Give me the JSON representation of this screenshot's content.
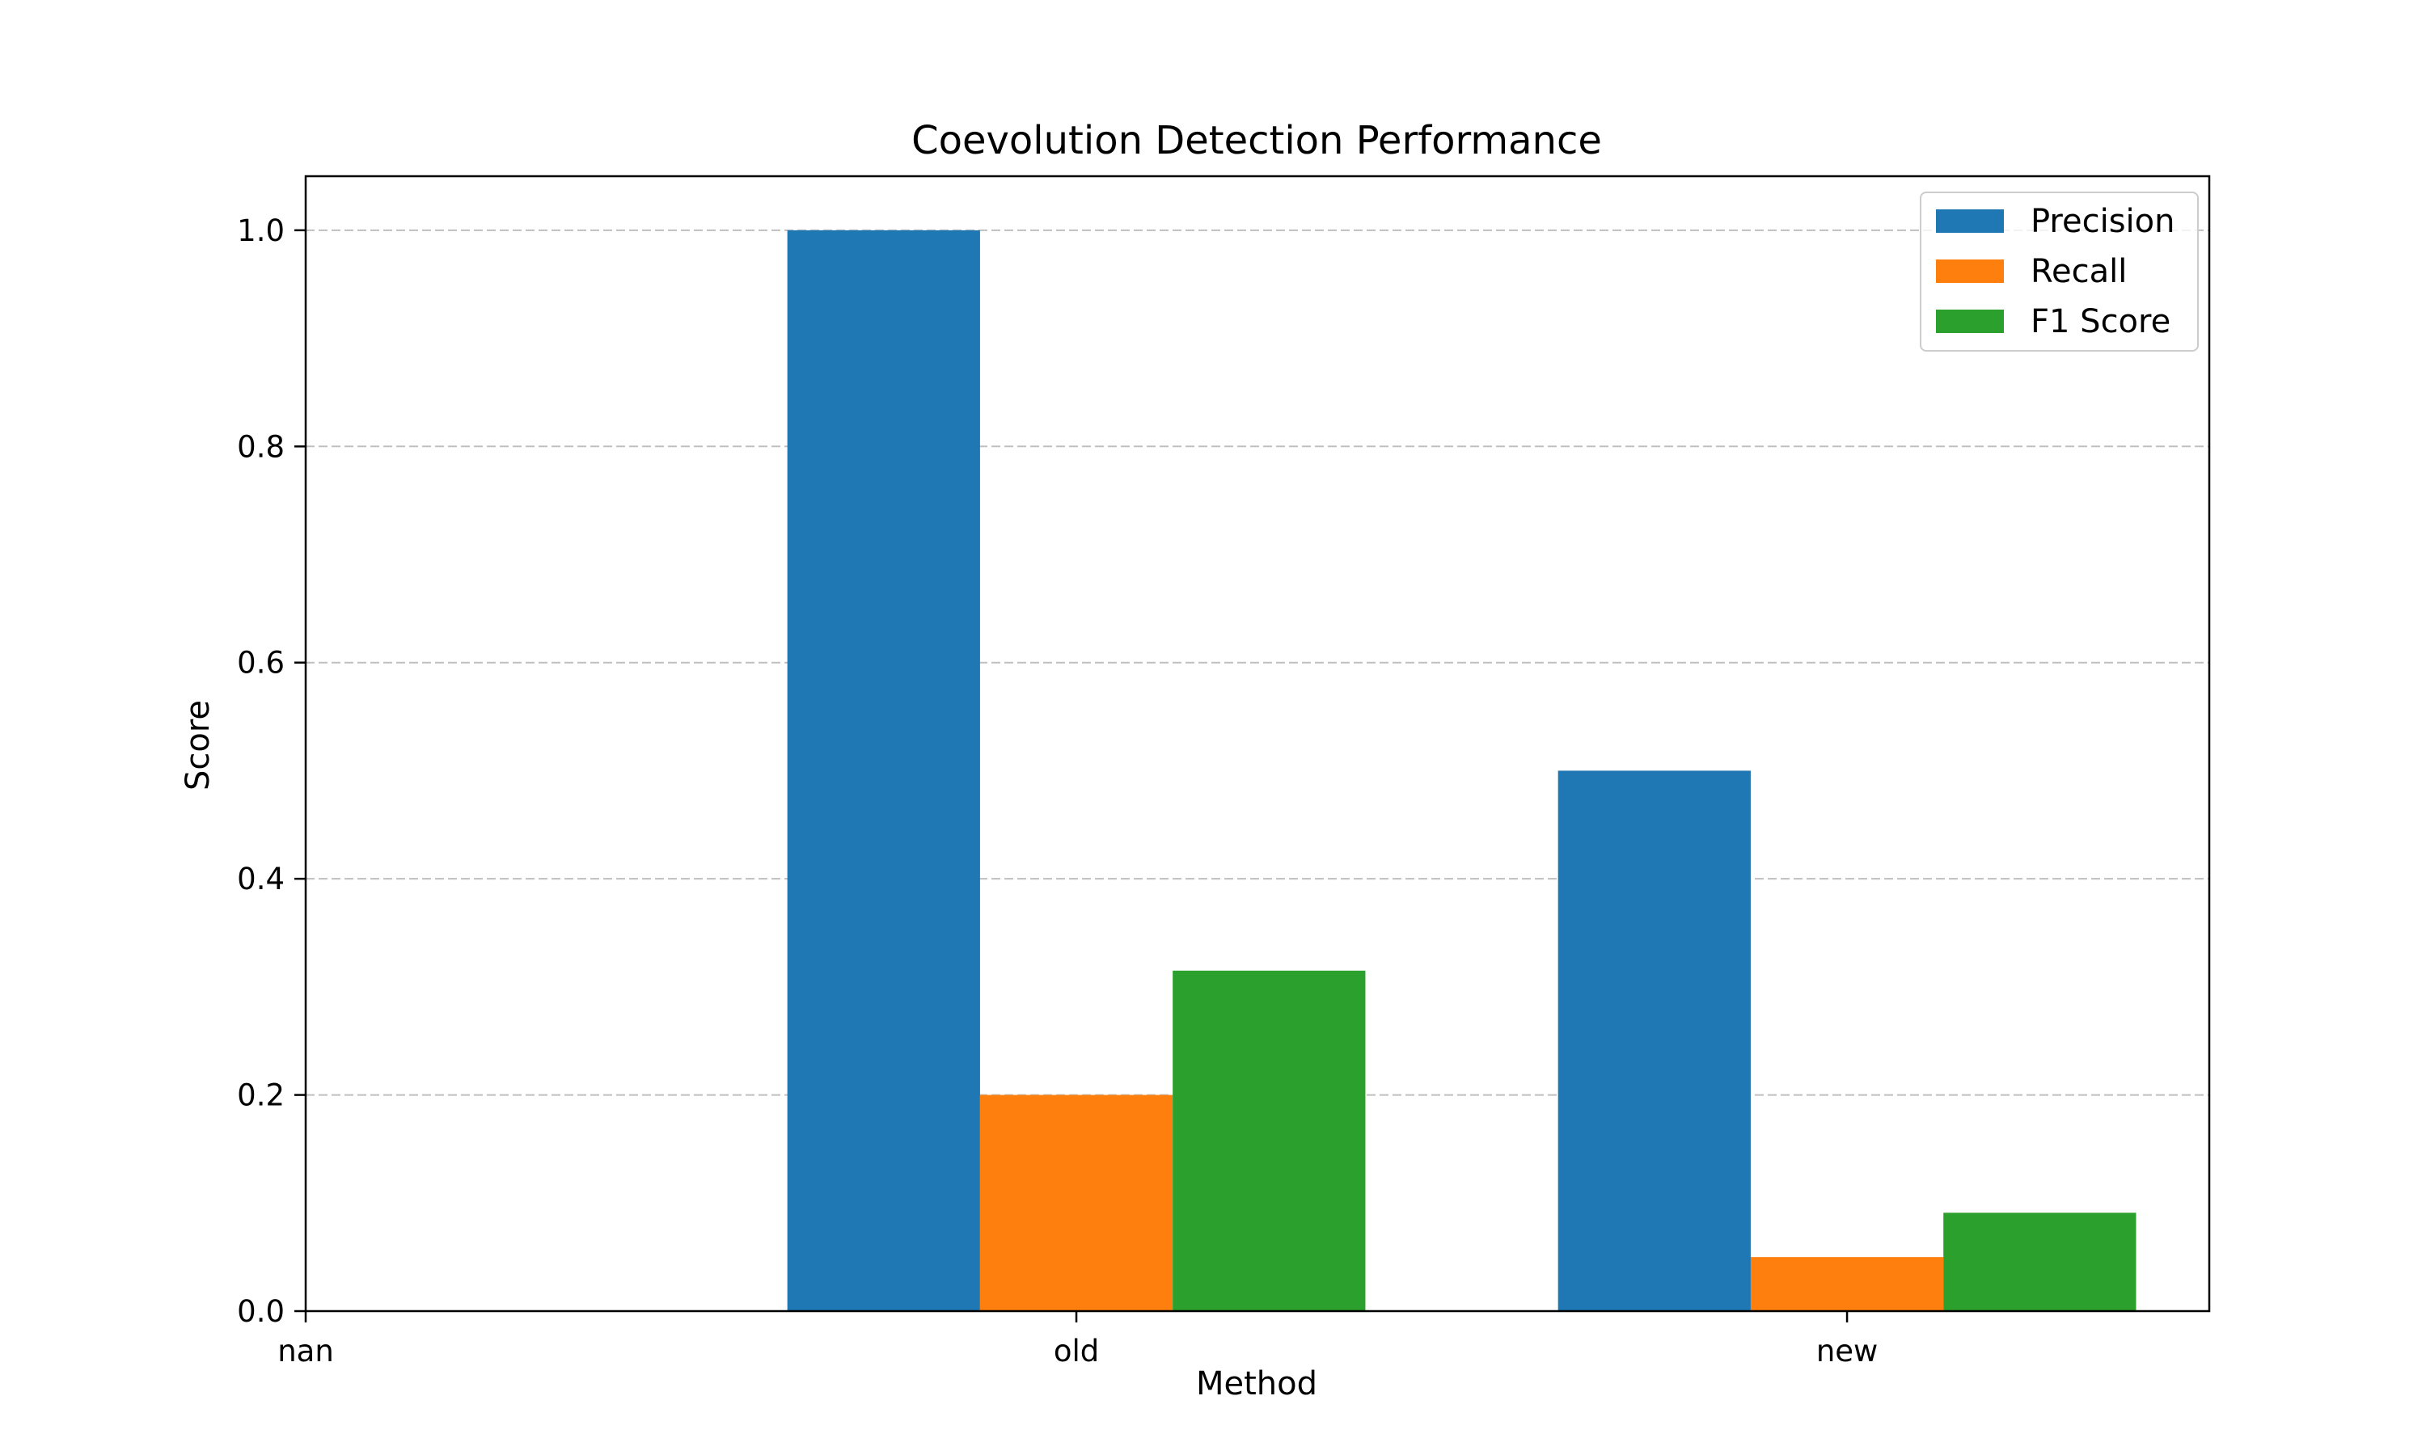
{
  "chart_data": {
    "type": "bar",
    "title": "Coevolution Detection Performance",
    "xlabel": "Method",
    "ylabel": "Score",
    "x_tick_labels": [
      "nan",
      "old",
      "new"
    ],
    "y_ticks": [
      0.0,
      0.2,
      0.4,
      0.6,
      0.8,
      1.0
    ],
    "y_tick_labels": [
      "0.0",
      "0.2",
      "0.4",
      "0.6",
      "0.8",
      "1.0"
    ],
    "ylim": [
      0,
      1.05
    ],
    "xlim": [
      0,
      2.47
    ],
    "grid": "y-dashed",
    "legend_position": "top-right",
    "groups": [
      {
        "label": "old",
        "center": 1.0
      },
      {
        "label": "new",
        "center": 2.0
      }
    ],
    "series": [
      {
        "name": "Precision",
        "color": "#1f77b4",
        "offset": -0.25,
        "values": [
          1.0,
          0.5
        ]
      },
      {
        "name": "Recall",
        "color": "#ff7f0e",
        "offset": 0.0,
        "values": [
          0.2,
          0.05
        ]
      },
      {
        "name": "F1 Score",
        "color": "#2ca02c",
        "offset": 0.25,
        "values": [
          0.315,
          0.091
        ]
      }
    ],
    "bar_width": 0.25
  }
}
